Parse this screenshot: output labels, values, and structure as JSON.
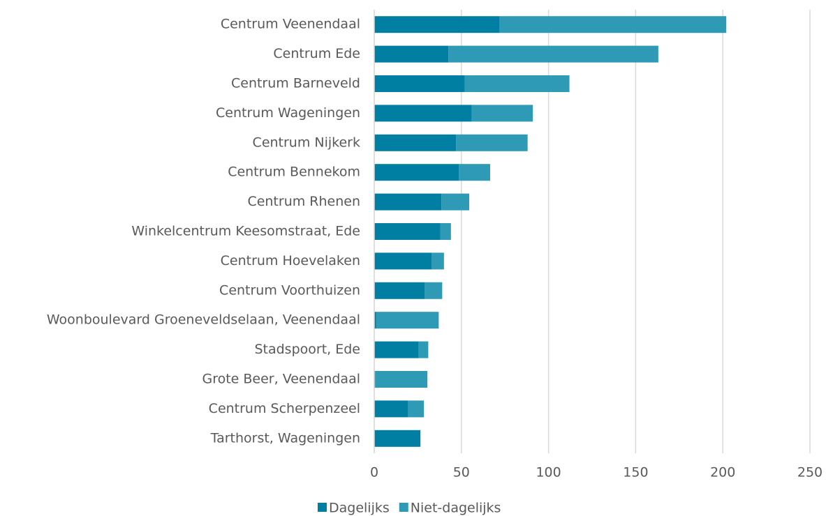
{
  "chart_data": {
    "type": "stacked_barh",
    "categories": [
      "Centrum Veenendaal",
      "Centrum Ede",
      "Centrum Barneveld",
      "Centrum Wageningen",
      "Centrum Nijkerk",
      "Centrum Bennekom",
      "Centrum Rhenen",
      "Winkelcentrum Keesomstraat, Ede",
      "Centrum Hoevelaken",
      "Centrum Voorthuizen",
      "Woonboulevard Groeneveldselaan, Veenendaal",
      "Stadspoort, Ede",
      "Grote Beer, Veenendaal",
      "Centrum Scherpenzeel",
      "Tarthorst, Wageningen"
    ],
    "series": [
      {
        "name": "Dagelijks",
        "color": "#007fa3",
        "values": [
          72,
          42.5,
          52,
          56,
          47,
          48.5,
          38.5,
          38,
          33,
          29,
          1,
          25.5,
          0.5,
          19.5,
          26.5
        ]
      },
      {
        "name": "Niet-dagelijks",
        "color": "#2e9ab5",
        "values": [
          130,
          120.5,
          60,
          35,
          41,
          18,
          16,
          6,
          7,
          10,
          36,
          5.5,
          30,
          9,
          0
        ]
      }
    ],
    "xlim": [
      0,
      250
    ],
    "xticks": [
      0,
      50,
      100,
      150,
      200,
      250
    ],
    "grid": true,
    "legend": "bottom"
  }
}
